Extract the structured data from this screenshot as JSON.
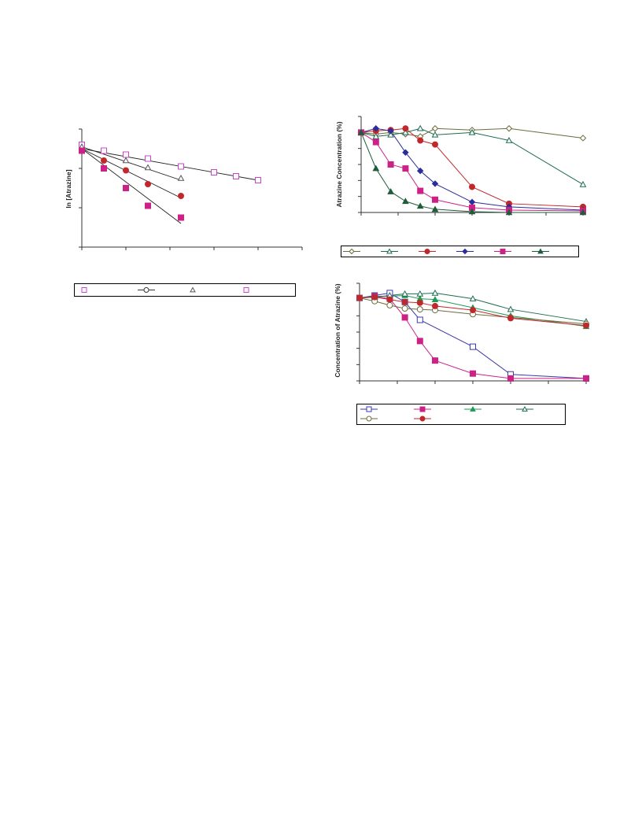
{
  "chart_data": [
    {
      "type": "scatter",
      "title": "",
      "ylabel": "ln [Atrazine]",
      "xlabel": "",
      "xlim": [
        0,
        5
      ],
      "ylim": [
        -3,
        0
      ],
      "grid": false,
      "legend": "bottom",
      "series": [
        {
          "marker": "square-open",
          "color": "#cc44cc",
          "points": [
            [
              0,
              -0.4
            ],
            [
              0.5,
              -0.55
            ],
            [
              1,
              -0.65
            ],
            [
              1.5,
              -0.75
            ],
            [
              2.25,
              -0.95
            ],
            [
              3,
              -1.1
            ],
            [
              3.5,
              -1.2
            ],
            [
              4,
              -1.3
            ]
          ],
          "fit": [
            [
              0,
              -0.5
            ],
            [
              4,
              -1.3
            ]
          ]
        },
        {
          "marker": "circle-filled",
          "color": "#c0282c",
          "points": [
            [
              0,
              -0.55
            ],
            [
              0.5,
              -0.8
            ],
            [
              1,
              -1.05
            ],
            [
              1.5,
              -1.4
            ],
            [
              2.25,
              -1.7
            ]
          ],
          "fit": [
            [
              0,
              -0.5
            ],
            [
              2.25,
              -1.75
            ]
          ]
        },
        {
          "marker": "triangle-open",
          "color": "#555555",
          "points": [
            [
              0,
              -0.45
            ],
            [
              1,
              -0.8
            ],
            [
              1.5,
              -0.98
            ],
            [
              2.25,
              -1.25
            ]
          ],
          "fit": [
            [
              0,
              -0.45
            ],
            [
              2.25,
              -1.3
            ]
          ]
        },
        {
          "marker": "square-filled",
          "color": "#cc2288",
          "points": [
            [
              0,
              -0.55
            ],
            [
              0.5,
              -1.0
            ],
            [
              1,
              -1.5
            ],
            [
              1.5,
              -1.95
            ],
            [
              2.25,
              -2.25
            ]
          ],
          "fit": [
            [
              0,
              -0.5
            ],
            [
              2.25,
              -2.4
            ]
          ]
        }
      ],
      "legend_entries": [
        {
          "marker": "square-open",
          "color": "#cc44cc"
        },
        {
          "marker": "circle-open-line",
          "color": "#333333"
        },
        {
          "marker": "triangle-open",
          "color": "#555555"
        },
        {
          "marker": "square-open",
          "color": "#cc44cc"
        }
      ]
    },
    {
      "type": "line",
      "title": "",
      "ylabel": "Atrazine Concentration (%)",
      "xlabel": "",
      "xlim": [
        0,
        150
      ],
      "ylim": [
        0,
        120
      ],
      "grid": false,
      "legend": "bottom",
      "series": [
        {
          "marker": "diamond-open",
          "color": "#6b6b3a",
          "x": [
            0,
            10,
            20,
            30,
            40,
            50,
            75,
            100,
            150
          ],
          "y": [
            100,
            98,
            100,
            98,
            95,
            105,
            103,
            105,
            93
          ]
        },
        {
          "marker": "triangle-open",
          "color": "#1e6b50",
          "x": [
            0,
            10,
            20,
            30,
            40,
            50,
            75,
            100,
            150
          ],
          "y": [
            100,
            95,
            97,
            100,
            105,
            97,
            100,
            90,
            35
          ]
        },
        {
          "marker": "circle-filled",
          "color": "#c0282c",
          "x": [
            0,
            10,
            20,
            30,
            40,
            50,
            75,
            100,
            150
          ],
          "y": [
            100,
            102,
            103,
            105,
            90,
            85,
            32,
            11,
            7
          ]
        },
        {
          "marker": "diamond-filled",
          "color": "#2b2d9a",
          "x": [
            0,
            10,
            20,
            30,
            40,
            50,
            75,
            100,
            150
          ],
          "y": [
            100,
            105,
            102,
            75,
            52,
            36,
            13,
            7,
            3
          ]
        },
        {
          "marker": "square-filled",
          "color": "#cc2288",
          "x": [
            0,
            10,
            20,
            30,
            40,
            50,
            75,
            100,
            150
          ],
          "y": [
            100,
            88,
            60,
            55,
            27,
            16,
            6,
            3,
            2
          ]
        },
        {
          "marker": "triangle-filled",
          "color": "#1e5c3a",
          "x": [
            0,
            10,
            20,
            30,
            40,
            50,
            75,
            100,
            150
          ],
          "y": [
            100,
            55,
            26,
            14,
            8,
            4,
            1,
            0,
            0
          ]
        }
      ]
    },
    {
      "type": "line",
      "title": "",
      "ylabel": "Concentration of Atrazine (%)",
      "xlabel": "",
      "xlim": [
        0,
        150
      ],
      "ylim": [
        0,
        120
      ],
      "grid": false,
      "legend": "bottom",
      "series": [
        {
          "marker": "square-open",
          "color": "#3a3aaa",
          "x": [
            0,
            10,
            20,
            30,
            40,
            75,
            100,
            150
          ],
          "y": [
            102,
            105,
            108,
            97,
            75,
            42,
            8,
            3
          ]
        },
        {
          "marker": "square-filled",
          "color": "#cc2288",
          "x": [
            0,
            10,
            20,
            30,
            40,
            50,
            75,
            100,
            150
          ],
          "y": [
            102,
            104,
            101,
            78,
            49,
            25,
            9,
            3,
            3
          ]
        },
        {
          "marker": "triangle-filled",
          "color": "#1e9b55",
          "x": [
            0,
            10,
            20,
            30,
            40,
            50,
            75,
            100,
            150
          ],
          "y": [
            102,
            104,
            104,
            105,
            101,
            100,
            90,
            80,
            67
          ]
        },
        {
          "marker": "triangle-open",
          "color": "#1e6b50",
          "x": [
            0,
            10,
            20,
            30,
            40,
            50,
            75,
            100,
            150
          ],
          "y": [
            102,
            103,
            105,
            107,
            107,
            108,
            101,
            88,
            73
          ]
        },
        {
          "marker": "circle-open",
          "color": "#6b6b3a",
          "x": [
            0,
            10,
            20,
            30,
            40,
            50,
            75,
            100,
            150
          ],
          "y": [
            102,
            98,
            93,
            89,
            88,
            87,
            82,
            78,
            70
          ]
        },
        {
          "marker": "circle-filled",
          "color": "#c0282c",
          "x": [
            0,
            10,
            20,
            30,
            40,
            50,
            75,
            100,
            150
          ],
          "y": [
            102,
            103,
            100,
            97,
            96,
            92,
            87,
            77,
            68
          ]
        }
      ]
    }
  ]
}
